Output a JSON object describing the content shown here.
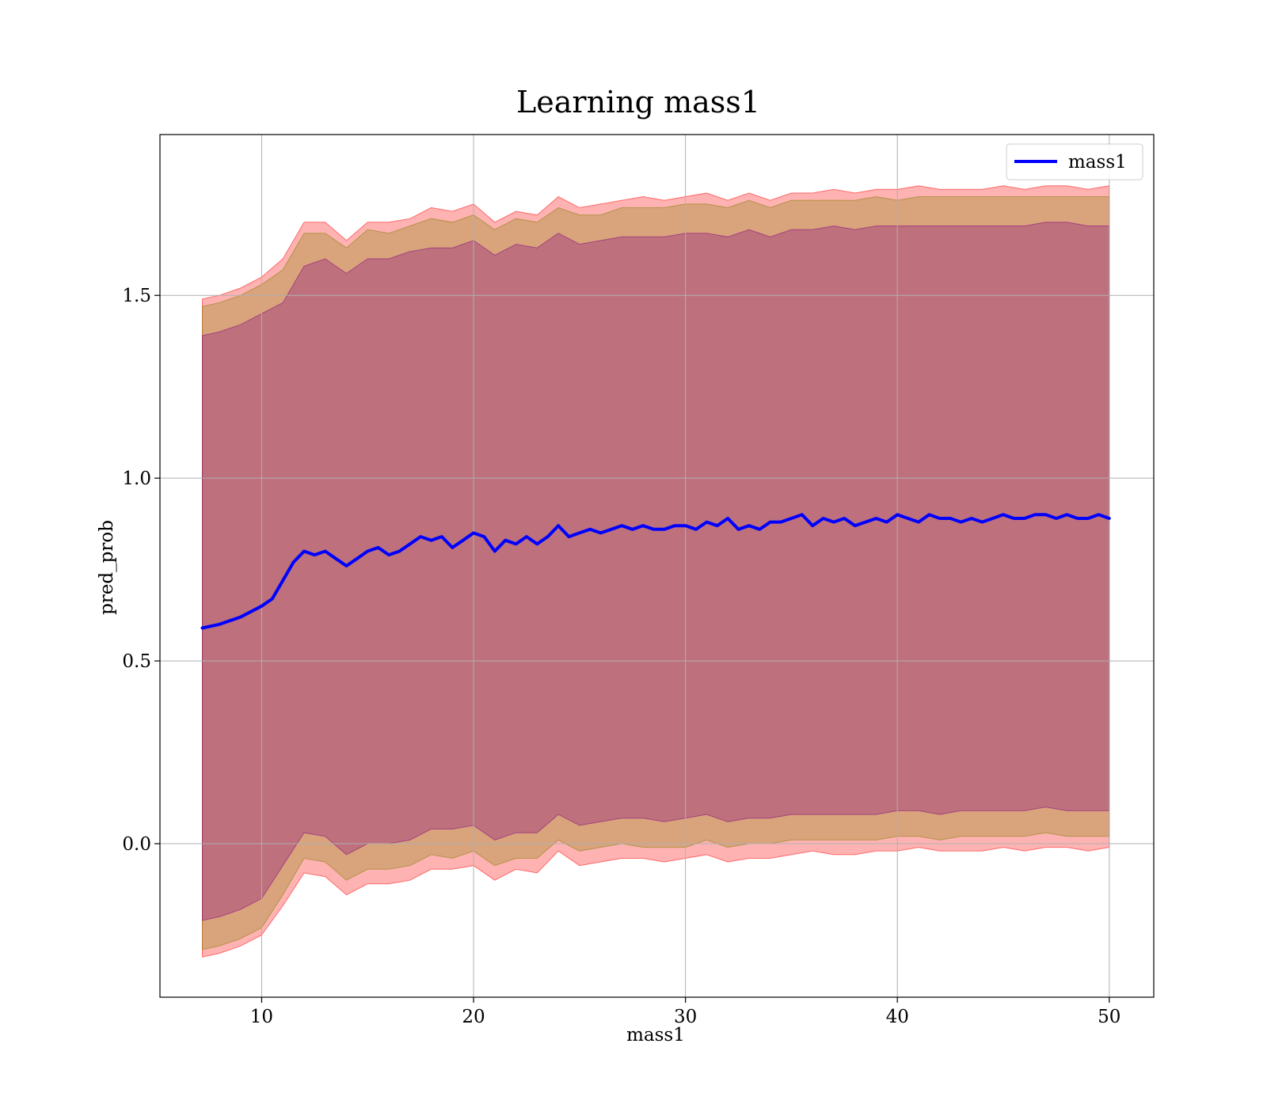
{
  "chart_data": {
    "type": "line",
    "title": "Learning mass1",
    "xlabel": "mass1",
    "ylabel": "pred_prob",
    "xlim": [
      5.2,
      52.1
    ],
    "ylim": [
      -0.42,
      1.94
    ],
    "xticks": [
      10,
      20,
      30,
      40,
      50
    ],
    "yticks": [
      0.0,
      0.5,
      1.0,
      1.5
    ],
    "xtick_labels": [
      "10",
      "20",
      "30",
      "40",
      "50"
    ],
    "ytick_labels": [
      "0.0",
      "0.5",
      "1.0",
      "1.5"
    ],
    "grid": true,
    "legend_position": "top-right",
    "series": [
      {
        "name": "mass1",
        "color": "#0000ff",
        "x": [
          7.2,
          8.0,
          9.0,
          10.0,
          10.5,
          11.0,
          11.5,
          12.0,
          12.5,
          13.0,
          13.5,
          14.0,
          14.5,
          15.0,
          15.5,
          16.0,
          16.5,
          17.0,
          17.5,
          18.0,
          18.5,
          19.0,
          19.5,
          20.0,
          20.5,
          21.0,
          21.5,
          22.0,
          22.5,
          23.0,
          23.5,
          24.0,
          24.5,
          25.0,
          25.5,
          26.0,
          26.5,
          27.0,
          27.5,
          28.0,
          28.5,
          29.0,
          29.5,
          30.0,
          30.5,
          31.0,
          31.5,
          32.0,
          32.5,
          33.0,
          33.5,
          34.0,
          34.5,
          35.0,
          35.5,
          36.0,
          36.5,
          37.0,
          37.5,
          38.0,
          38.5,
          39.0,
          39.5,
          40.0,
          40.5,
          41.0,
          41.5,
          42.0,
          42.5,
          43.0,
          43.5,
          44.0,
          44.5,
          45.0,
          45.5,
          46.0,
          46.5,
          47.0,
          47.5,
          48.0,
          48.5,
          49.0,
          49.5,
          50.0
        ],
        "y": [
          0.59,
          0.6,
          0.62,
          0.65,
          0.67,
          0.72,
          0.77,
          0.8,
          0.79,
          0.8,
          0.78,
          0.76,
          0.78,
          0.8,
          0.81,
          0.79,
          0.8,
          0.82,
          0.84,
          0.83,
          0.84,
          0.81,
          0.83,
          0.85,
          0.84,
          0.8,
          0.83,
          0.82,
          0.84,
          0.82,
          0.84,
          0.87,
          0.84,
          0.85,
          0.86,
          0.85,
          0.86,
          0.87,
          0.86,
          0.87,
          0.86,
          0.86,
          0.87,
          0.87,
          0.86,
          0.88,
          0.87,
          0.89,
          0.86,
          0.87,
          0.86,
          0.88,
          0.88,
          0.89,
          0.9,
          0.87,
          0.89,
          0.88,
          0.89,
          0.87,
          0.88,
          0.89,
          0.88,
          0.9,
          0.89,
          0.88,
          0.9,
          0.89,
          0.89,
          0.88,
          0.89,
          0.88,
          0.89,
          0.9,
          0.89,
          0.89,
          0.9,
          0.9,
          0.89,
          0.9,
          0.89,
          0.89,
          0.9,
          0.89
        ]
      }
    ],
    "bands": [
      {
        "color": "#ff0000",
        "opacity": 0.3,
        "x": [
          7.2,
          8.0,
          9.0,
          10.0,
          11.0,
          12.0,
          13.0,
          14.0,
          15.0,
          16.0,
          17.0,
          18.0,
          19.0,
          20.0,
          21.0,
          22.0,
          23.0,
          24.0,
          25.0,
          26.0,
          27.0,
          28.0,
          29.0,
          30.0,
          31.0,
          32.0,
          33.0,
          34.0,
          35.0,
          36.0,
          37.0,
          38.0,
          39.0,
          40.0,
          41.0,
          42.0,
          43.0,
          44.0,
          45.0,
          46.0,
          47.0,
          48.0,
          49.0,
          50.0
        ],
        "upper": [
          1.49,
          1.5,
          1.52,
          1.55,
          1.6,
          1.7,
          1.7,
          1.65,
          1.7,
          1.7,
          1.71,
          1.74,
          1.73,
          1.75,
          1.7,
          1.73,
          1.72,
          1.77,
          1.74,
          1.75,
          1.76,
          1.77,
          1.76,
          1.77,
          1.78,
          1.76,
          1.78,
          1.76,
          1.78,
          1.78,
          1.79,
          1.78,
          1.79,
          1.79,
          1.8,
          1.79,
          1.79,
          1.79,
          1.8,
          1.79,
          1.8,
          1.8,
          1.79,
          1.8
        ],
        "lower": [
          -0.31,
          -0.3,
          -0.28,
          -0.25,
          -0.17,
          -0.08,
          -0.09,
          -0.14,
          -0.11,
          -0.11,
          -0.1,
          -0.07,
          -0.07,
          -0.06,
          -0.1,
          -0.07,
          -0.08,
          -0.02,
          -0.06,
          -0.05,
          -0.04,
          -0.04,
          -0.05,
          -0.04,
          -0.03,
          -0.05,
          -0.04,
          -0.04,
          -0.03,
          -0.02,
          -0.03,
          -0.03,
          -0.02,
          -0.02,
          -0.01,
          -0.02,
          -0.02,
          -0.02,
          -0.01,
          -0.02,
          -0.01,
          -0.01,
          -0.02,
          -0.01
        ]
      },
      {
        "color": "#808000",
        "opacity": 0.3,
        "x": [
          7.2,
          8.0,
          9.0,
          10.0,
          11.0,
          12.0,
          13.0,
          14.0,
          15.0,
          16.0,
          17.0,
          18.0,
          19.0,
          20.0,
          21.0,
          22.0,
          23.0,
          24.0,
          25.0,
          26.0,
          27.0,
          28.0,
          29.0,
          30.0,
          31.0,
          32.0,
          33.0,
          34.0,
          35.0,
          36.0,
          37.0,
          38.0,
          39.0,
          40.0,
          41.0,
          42.0,
          43.0,
          44.0,
          45.0,
          46.0,
          47.0,
          48.0,
          49.0,
          50.0
        ],
        "upper": [
          1.47,
          1.48,
          1.5,
          1.53,
          1.57,
          1.67,
          1.67,
          1.63,
          1.68,
          1.67,
          1.69,
          1.71,
          1.7,
          1.72,
          1.68,
          1.71,
          1.7,
          1.74,
          1.72,
          1.72,
          1.74,
          1.74,
          1.74,
          1.75,
          1.75,
          1.74,
          1.76,
          1.74,
          1.76,
          1.76,
          1.76,
          1.76,
          1.77,
          1.76,
          1.77,
          1.77,
          1.77,
          1.77,
          1.77,
          1.77,
          1.77,
          1.77,
          1.77,
          1.77
        ],
        "lower": [
          -0.29,
          -0.28,
          -0.26,
          -0.23,
          -0.14,
          -0.04,
          -0.05,
          -0.1,
          -0.07,
          -0.07,
          -0.06,
          -0.03,
          -0.04,
          -0.02,
          -0.06,
          -0.04,
          -0.04,
          0.01,
          -0.02,
          -0.01,
          0.0,
          -0.01,
          -0.01,
          -0.01,
          0.01,
          -0.01,
          0.0,
          0.0,
          0.01,
          0.01,
          0.01,
          0.01,
          0.01,
          0.02,
          0.02,
          0.01,
          0.02,
          0.02,
          0.02,
          0.02,
          0.03,
          0.02,
          0.02,
          0.02
        ]
      },
      {
        "color": "#800080",
        "opacity": 0.3,
        "x": [
          7.2,
          8.0,
          9.0,
          10.0,
          11.0,
          12.0,
          13.0,
          14.0,
          15.0,
          16.0,
          17.0,
          18.0,
          19.0,
          20.0,
          21.0,
          22.0,
          23.0,
          24.0,
          25.0,
          26.0,
          27.0,
          28.0,
          29.0,
          30.0,
          31.0,
          32.0,
          33.0,
          34.0,
          35.0,
          36.0,
          37.0,
          38.0,
          39.0,
          40.0,
          41.0,
          42.0,
          43.0,
          44.0,
          45.0,
          46.0,
          47.0,
          48.0,
          49.0,
          50.0
        ],
        "upper": [
          1.39,
          1.4,
          1.42,
          1.45,
          1.48,
          1.58,
          1.6,
          1.56,
          1.6,
          1.6,
          1.62,
          1.63,
          1.63,
          1.65,
          1.61,
          1.64,
          1.63,
          1.67,
          1.64,
          1.65,
          1.66,
          1.66,
          1.66,
          1.67,
          1.67,
          1.66,
          1.68,
          1.66,
          1.68,
          1.68,
          1.69,
          1.68,
          1.69,
          1.69,
          1.69,
          1.69,
          1.69,
          1.69,
          1.69,
          1.69,
          1.7,
          1.7,
          1.69,
          1.69
        ],
        "lower": [
          -0.21,
          -0.2,
          -0.18,
          -0.15,
          -0.06,
          0.03,
          0.02,
          -0.03,
          0.0,
          0.0,
          0.01,
          0.04,
          0.04,
          0.05,
          0.01,
          0.03,
          0.03,
          0.08,
          0.05,
          0.06,
          0.07,
          0.07,
          0.06,
          0.07,
          0.08,
          0.06,
          0.07,
          0.07,
          0.08,
          0.08,
          0.08,
          0.08,
          0.08,
          0.09,
          0.09,
          0.08,
          0.09,
          0.09,
          0.09,
          0.09,
          0.1,
          0.09,
          0.09,
          0.09
        ]
      }
    ]
  }
}
